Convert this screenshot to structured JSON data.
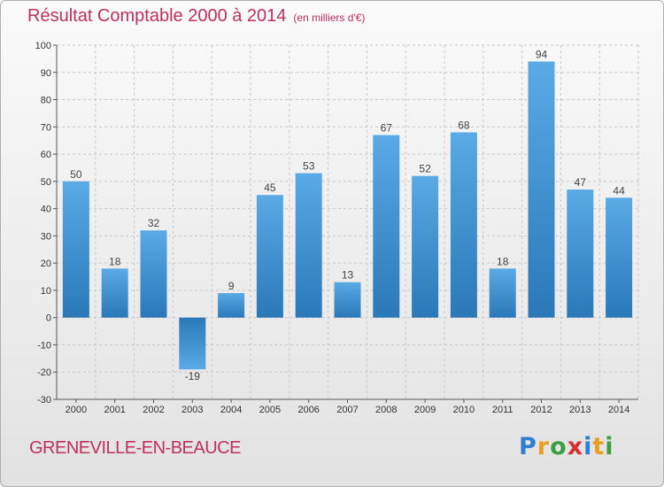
{
  "title": "Résultat Comptable 2000 à 2014",
  "subtitle": "(en milliers d'€)",
  "commune": "GRENEVILLE-EN-BEAUCE",
  "logo": {
    "text": "Proxiti",
    "letters": [
      {
        "ch": "P",
        "color": "#2e7fd0"
      },
      {
        "ch": "r",
        "color": "#e8a020"
      },
      {
        "ch": "o",
        "color": "#3aa040"
      },
      {
        "ch": "x",
        "color": "#d83030"
      },
      {
        "ch": "i",
        "color": "#2e7fd0"
      },
      {
        "ch": "t",
        "color": "#e8a020"
      },
      {
        "ch": "i",
        "color": "#3aa040"
      }
    ]
  },
  "chart_data": {
    "type": "bar",
    "categories": [
      "2000",
      "2001",
      "2002",
      "2003",
      "2004",
      "2005",
      "2006",
      "2007",
      "2008",
      "2009",
      "2010",
      "2011",
      "2012",
      "2013",
      "2014"
    ],
    "values": [
      50,
      18,
      32,
      -19,
      9,
      45,
      53,
      13,
      67,
      52,
      68,
      18,
      94,
      47,
      44
    ],
    "title": "Résultat Comptable 2000 à 2014",
    "subtitle": "(en milliers d'€)",
    "ylim": [
      -30,
      100
    ],
    "yticks": [
      -30,
      -20,
      -10,
      0,
      10,
      20,
      30,
      40,
      50,
      60,
      70,
      80,
      90,
      100
    ],
    "grid": "horizontal-dashed",
    "colors": {
      "bar_light": "#5aaae6",
      "bar_dark": "#2a78b8",
      "axis": "#555555",
      "grid": "#c8c8c8"
    }
  }
}
